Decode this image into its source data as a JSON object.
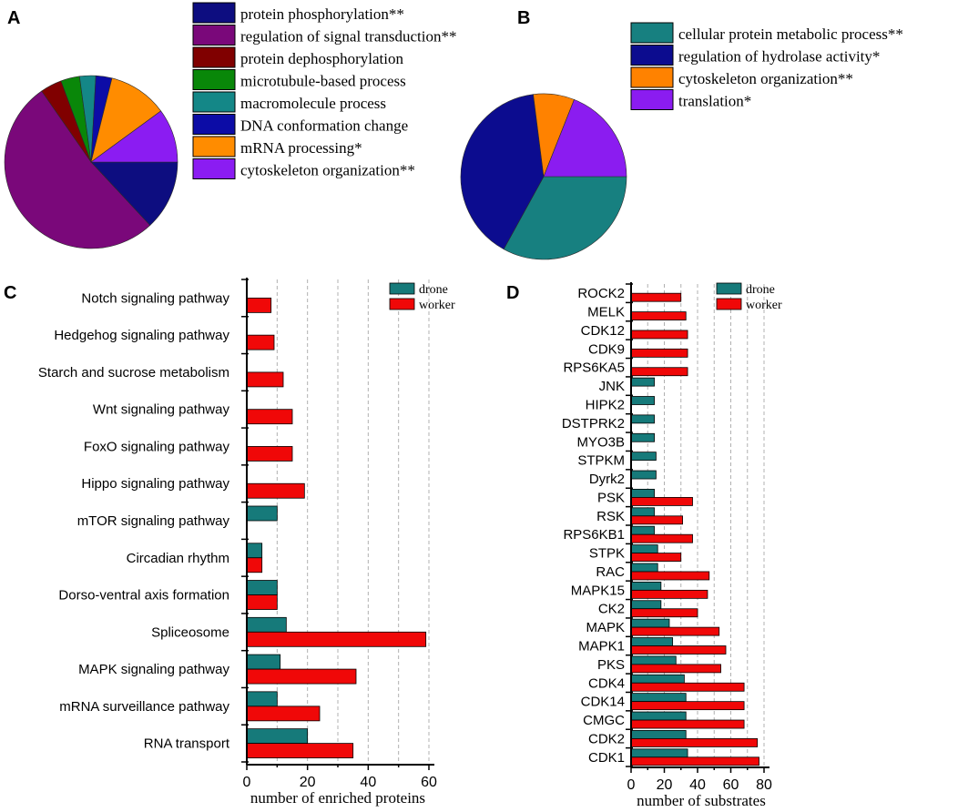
{
  "colors": {
    "drone": "#167a7a",
    "worker": "#f00808",
    "grid": "#b0b0b0"
  },
  "chart_data": [
    {
      "panel": "A",
      "type": "pie",
      "labels": [
        "protein phosphorylation**",
        "regulation of signal transduction**",
        "protein dephosphorylation",
        "microtubule-based process",
        "macromolecule process",
        "DNA conformation change",
        "mRNA processing*",
        "cytoskeleton organization**"
      ],
      "values": [
        13,
        52,
        4,
        3.5,
        3,
        3,
        11,
        10
      ],
      "colors": [
        "#0d0d80",
        "#7a087a",
        "#800000",
        "#098709",
        "#148787",
        "#0c0ca6",
        "#ff8c00",
        "#8b1cf2"
      ]
    },
    {
      "panel": "B",
      "type": "pie",
      "labels": [
        "cellular protein metabolic process**",
        "regulation of hydrolase activity*",
        "cytoskeleton organization**",
        "translation*"
      ],
      "values": [
        33,
        40,
        8,
        19
      ],
      "colors": [
        "#178080",
        "#0c0c8f",
        "#ff8200",
        "#8b1cf0"
      ]
    },
    {
      "panel": "C",
      "type": "bar",
      "orientation": "horizontal",
      "categories": [
        "Notch signaling pathway",
        "Hedgehog signaling pathway",
        "Starch and sucrose metabolism",
        "Wnt signaling pathway",
        "FoxO signaling pathway",
        "Hippo signaling pathway",
        "mTOR signaling pathway",
        "Circadian rhythm",
        "Dorso-ventral axis formation",
        "Spliceosome",
        "MAPK signaling pathway",
        "mRNA surveillance pathway",
        "RNA transport"
      ],
      "series": [
        {
          "name": "drone",
          "values": [
            0,
            0,
            0,
            0,
            0,
            0,
            10,
            5,
            10,
            13,
            11,
            10,
            20
          ]
        },
        {
          "name": "worker",
          "values": [
            8,
            9,
            12,
            15,
            15,
            19,
            0,
            5,
            10,
            59,
            36,
            24,
            35
          ]
        }
      ],
      "xlabel": "number of enriched proteins",
      "xlim": [
        0,
        60
      ],
      "xticks": [
        "0",
        "20",
        "40",
        "60"
      ],
      "legend": [
        "drone",
        "worker"
      ]
    },
    {
      "panel": "D",
      "type": "bar",
      "orientation": "horizontal",
      "categories": [
        "ROCK2",
        "MELK",
        "CDK12",
        "CDK9",
        "RPS6KA5",
        "JNK",
        "HIPK2",
        "DSTPRK2",
        "MYO3B",
        "STPKM",
        "Dyrk2",
        "PSK",
        "RSK",
        "RPS6KB1",
        "STPK",
        "RAC",
        "MAPK15",
        "CK2",
        "MAPK",
        "MAPK1",
        "PKS",
        "CDK4",
        "CDK14",
        "CMGC",
        "CDK2",
        "CDK1"
      ],
      "series": [
        {
          "name": "drone",
          "values": [
            0,
            0,
            0,
            0,
            0,
            14,
            14,
            14,
            14,
            15,
            15,
            14,
            14,
            14,
            16,
            16,
            18,
            18,
            23,
            25,
            27,
            32,
            33,
            33,
            33,
            34
          ]
        },
        {
          "name": "worker",
          "values": [
            30,
            33,
            34,
            34,
            34,
            0,
            0,
            0,
            0,
            0,
            0,
            37,
            31,
            37,
            30,
            47,
            46,
            40,
            53,
            57,
            54,
            68,
            68,
            68,
            76,
            77
          ]
        }
      ],
      "xlabel": "number of substrates",
      "xlim": [
        0,
        80
      ],
      "xticks": [
        "0",
        "20",
        "40",
        "60",
        "80"
      ],
      "legend": [
        "drone",
        "worker"
      ]
    }
  ]
}
